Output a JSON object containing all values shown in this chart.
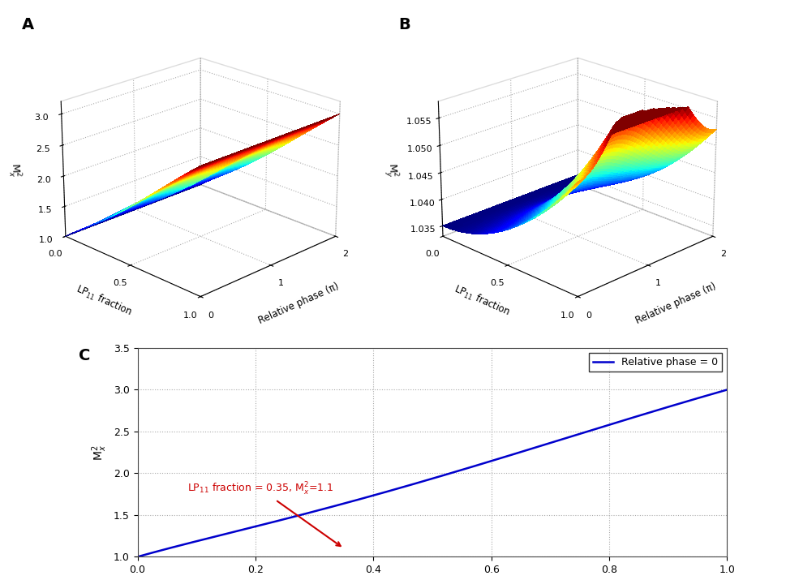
{
  "panel_A_label": "A",
  "panel_B_label": "B",
  "panel_C_label": "C",
  "xlabel_3d_A": "Relative phase (π)",
  "ylabel_3d_A": "LP$_{11}$ fraction",
  "zlabel_A": "M$^2_x$",
  "xlabel_3d_B": "Relative phase (π)",
  "ylabel_3d_B": "LP$_{11}$ fraction",
  "zlabel_B": "M$^2_y$",
  "xlabel_C": "LP$_{11}$ fraction",
  "ylabel_C": "M$^2_x$",
  "legend_C": "Relative phase = 0",
  "annotation_color": "#cc0000",
  "line_color_C": "#0000cc",
  "A_zlim": [
    1.0,
    3.2
  ],
  "A_zticks": [
    1.0,
    1.5,
    2.0,
    2.5,
    3.0
  ],
  "B_zlim": [
    1.033,
    1.058
  ],
  "B_zticks": [
    1.035,
    1.04,
    1.045,
    1.05,
    1.055
  ],
  "C_ylim": [
    1.0,
    3.5
  ],
  "C_yticks": [
    1.0,
    1.5,
    2.0,
    2.5,
    3.0,
    3.5
  ],
  "C_xlim": [
    0.0,
    1.0
  ],
  "C_xticks": [
    0.0,
    0.2,
    0.4,
    0.6,
    0.8,
    1.0
  ],
  "N_grid": 50,
  "N_line": 500
}
